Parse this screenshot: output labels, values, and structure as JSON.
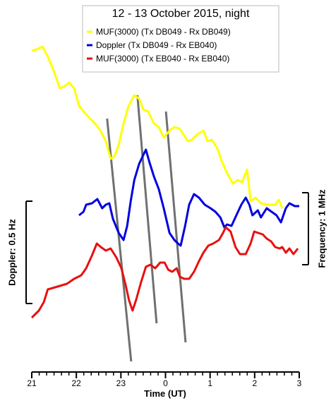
{
  "chart_data": {
    "type": "line",
    "title": "12 - 13 October 2015, night",
    "x_label": "Time (UT)",
    "xlim": [
      21,
      27
    ],
    "ylim": [
      -4,
      45
    ],
    "xticks": [
      21,
      22,
      23,
      {
        "value": 24,
        "label": "0"
      },
      {
        "value": 25,
        "label": "1"
      },
      {
        "value": 26,
        "label": "2"
      },
      {
        "value": 27,
        "label": "3"
      }
    ],
    "series": [
      {
        "name": "MUF(3000) (Tx DB049 - Rx DB049)",
        "color": "#ffff00",
        "x": [
          21.0,
          21.11,
          21.24,
          21.36,
          21.49,
          21.63,
          21.74,
          21.84,
          21.95,
          22.06,
          22.19,
          22.31,
          22.42,
          22.54,
          22.66,
          22.77,
          22.85,
          22.95,
          23.06,
          23.17,
          23.3,
          23.41,
          23.5,
          23.61,
          23.74,
          23.85,
          23.96,
          24.09,
          24.2,
          24.31,
          24.4,
          24.5,
          24.59,
          24.72,
          24.85,
          24.94,
          25.04,
          25.16,
          25.27,
          25.38,
          25.51,
          25.62,
          25.72,
          25.83,
          25.91,
          26.02,
          26.14,
          26.3,
          26.46,
          26.54,
          26.62
        ],
        "values": [
          41.8,
          42.0,
          42.4,
          41.0,
          39.0,
          36.5,
          36.8,
          37.3,
          36.5,
          34.0,
          33.0,
          32.2,
          31.5,
          30.5,
          29.0,
          26.5,
          26.8,
          28.5,
          31.5,
          34.0,
          35.5,
          35.0,
          33.5,
          33.2,
          31.5,
          31.0,
          29.5,
          30.5,
          31.0,
          30.8,
          30.0,
          29.0,
          29.2,
          30.0,
          30.5,
          29.0,
          29.2,
          28.0,
          26.0,
          24.5,
          23.0,
          23.5,
          23.2,
          25.0,
          20.5,
          21.0,
          20.2,
          20.0,
          20.0,
          20.7,
          19.5
        ]
      },
      {
        "name": "Doppler (Tx DB049 - Rx EB040)",
        "color": "#0000e0",
        "x": [
          22.06,
          22.16,
          22.22,
          22.35,
          22.47,
          22.58,
          22.66,
          22.74,
          22.82,
          22.95,
          23.06,
          23.14,
          23.22,
          23.3,
          23.41,
          23.5,
          23.56,
          23.64,
          23.74,
          23.85,
          23.96,
          24.09,
          24.2,
          24.28,
          24.34,
          24.44,
          24.53,
          24.64,
          24.75,
          24.88,
          25.01,
          25.12,
          25.23,
          25.32,
          25.38,
          25.48,
          25.59,
          25.7,
          25.8,
          25.88,
          25.95,
          26.07,
          26.14,
          26.27,
          26.38,
          26.49,
          26.59,
          26.7,
          26.78,
          26.9,
          27.0
        ],
        "values": [
          18.5,
          19.0,
          20.0,
          20.2,
          20.8,
          19.5,
          20.0,
          20.2,
          18.0,
          16.0,
          15.0,
          17.0,
          20.5,
          23.5,
          25.8,
          27.0,
          27.8,
          26.0,
          24.0,
          22.2,
          19.5,
          16.0,
          15.0,
          14.5,
          14.2,
          17.0,
          20.0,
          21.5,
          21.0,
          20.0,
          19.5,
          19.0,
          18.2,
          16.8,
          17.2,
          17.0,
          18.5,
          20.0,
          21.0,
          20.0,
          18.5,
          19.2,
          18.2,
          19.5,
          19.0,
          18.5,
          17.5,
          19.5,
          20.2,
          19.8,
          19.8
        ]
      },
      {
        "name": "MUF(3000) (Tx EB040 - Rx EB040)",
        "color": "#e81010",
        "x": [
          21.0,
          21.16,
          21.27,
          21.36,
          21.47,
          21.63,
          21.79,
          21.95,
          22.11,
          22.22,
          22.35,
          22.46,
          22.55,
          22.66,
          22.77,
          22.9,
          23.01,
          23.11,
          23.18,
          23.26,
          23.34,
          23.45,
          23.56,
          23.66,
          23.77,
          23.88,
          23.98,
          24.06,
          24.15,
          24.25,
          24.32,
          24.42,
          24.53,
          24.64,
          24.75,
          24.85,
          24.96,
          25.07,
          25.2,
          25.29,
          25.35,
          25.46,
          25.57,
          25.67,
          25.8,
          25.91,
          25.99,
          26.08,
          26.18,
          26.27,
          26.37,
          26.46,
          26.56,
          26.62,
          26.7,
          26.78,
          26.87,
          26.97
        ],
        "values": [
          4.0,
          5.0,
          6.2,
          8.0,
          8.2,
          8.5,
          8.8,
          9.5,
          10.0,
          11.0,
          12.8,
          14.5,
          14.0,
          13.5,
          13.8,
          12.5,
          11.0,
          8.5,
          6.5,
          5.0,
          6.5,
          9.0,
          11.2,
          11.5,
          11.0,
          11.8,
          11.8,
          10.8,
          10.5,
          11.0,
          9.8,
          9.5,
          9.5,
          10.5,
          12.0,
          13.2,
          14.2,
          14.5,
          15.0,
          16.0,
          16.8,
          16.2,
          14.0,
          13.0,
          13.0,
          14.5,
          16.2,
          16.0,
          15.8,
          15.2,
          14.8,
          14.0,
          13.8,
          14.0,
          13.2,
          13.8,
          13.0,
          13.8
        ]
      }
    ],
    "trend_lines": {
      "color": "#707070",
      "lines": [
        [
          22.69,
          32.2,
          23.23,
          -2.2
        ],
        [
          23.37,
          35.5,
          23.8,
          3.2
        ],
        [
          24.01,
          33.2,
          24.45,
          0.5
        ]
      ]
    },
    "scale_bars": [
      {
        "label": "Doppler: 0.5 Hz",
        "length": 14.5,
        "side": "left"
      },
      {
        "label": "Frequency: 1 MHz",
        "length": 10.2,
        "side": "right"
      }
    ]
  }
}
